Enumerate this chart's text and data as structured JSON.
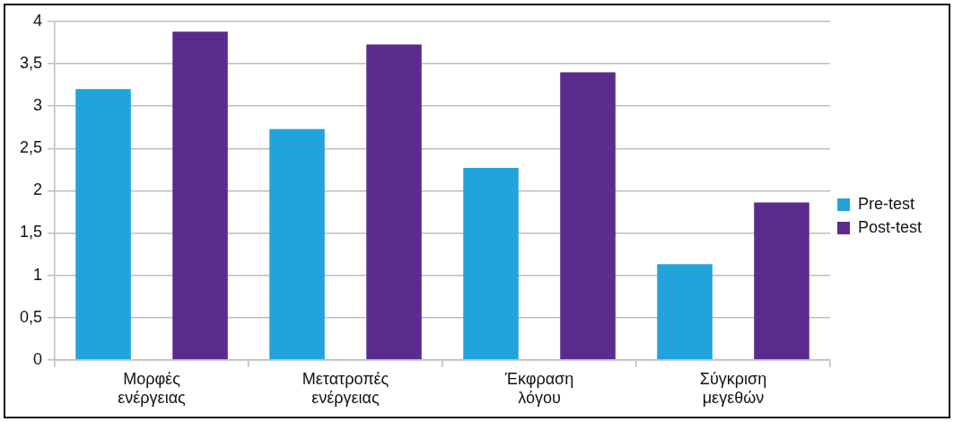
{
  "chart_data": {
    "type": "bar",
    "categories": [
      "Μορφές ενέργειας",
      "Μετατροπές ενέργειας",
      "Έκφραση λόγου",
      "Σύγκριση μεγεθών"
    ],
    "series": [
      {
        "name": "Pre-test",
        "color": "#22a3dc",
        "values": [
          3.2,
          2.73,
          2.27,
          1.13
        ]
      },
      {
        "name": "Post-test",
        "color": "#5b2c8e",
        "values": [
          3.88,
          3.73,
          3.4,
          1.86
        ]
      }
    ],
    "ylim": [
      0,
      4
    ],
    "yticks": [
      0,
      {
        "value": 0.5,
        "label": "0,5"
      },
      1,
      {
        "value": 1.5,
        "label": "1,5"
      },
      2,
      {
        "value": 2.5,
        "label": "2,5"
      },
      3,
      {
        "value": 3.5,
        "label": "3,5"
      },
      4
    ],
    "grid": "y",
    "legend": "right"
  }
}
